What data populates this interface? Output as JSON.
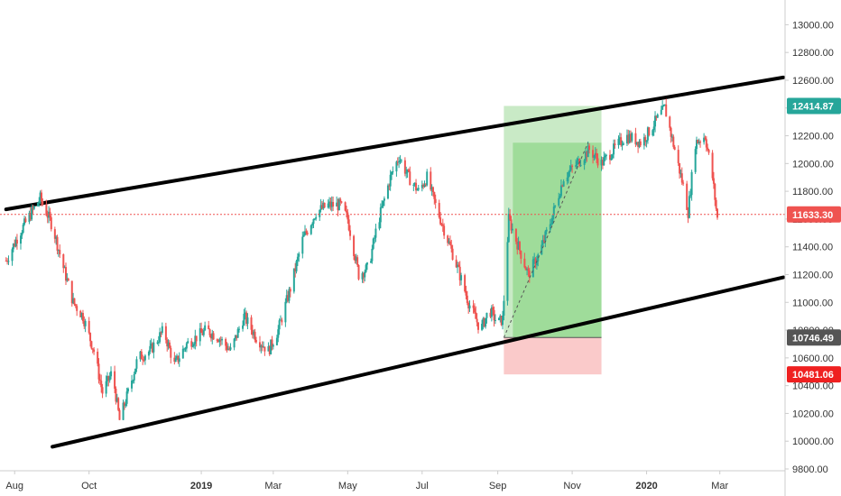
{
  "colors": {
    "up": "#26a69a",
    "down": "#ef5350",
    "channel": "#000000",
    "profit_zone": "#a5dca0",
    "profit_zone_inner": "#7ccf76",
    "loss_zone": "#f8b4b4",
    "current_price_line": "#ef5350",
    "axis_text": "#333333",
    "axis_line": "#cccccc"
  },
  "chart_data": {
    "type": "candlestick",
    "ylim": [
      9800,
      13100
    ],
    "y_ticks": [
      "13000.00",
      "12800.00",
      "12600.00",
      "12400.00",
      "12200.00",
      "12000.00",
      "11800.00",
      "11600.00",
      "11400.00",
      "11200.00",
      "11000.00",
      "10800.00",
      "10600.00",
      "10400.00",
      "10200.00",
      "10000.00",
      "9800.00"
    ],
    "x_ticks": [
      {
        "label": "Aug",
        "bold": false,
        "date": "2018-08-01"
      },
      {
        "label": "Oct",
        "bold": false,
        "date": "2018-10-01"
      },
      {
        "label": "2019",
        "bold": true,
        "date": "2019-01-01"
      },
      {
        "label": "Mar",
        "bold": false,
        "date": "2019-03-01"
      },
      {
        "label": "May",
        "bold": false,
        "date": "2019-05-01"
      },
      {
        "label": "Jul",
        "bold": false,
        "date": "2019-07-01"
      },
      {
        "label": "Sep",
        "bold": false,
        "date": "2019-09-01"
      },
      {
        "label": "Nov",
        "bold": false,
        "date": "2019-11-01"
      },
      {
        "label": "2020",
        "bold": true,
        "date": "2020-01-01"
      },
      {
        "label": "Mar",
        "bold": false,
        "date": "2020-03-01"
      }
    ],
    "price_path": [
      [
        "2018-07-25",
        11300
      ],
      [
        "2018-08-05",
        11500
      ],
      [
        "2018-08-15",
        11650
      ],
      [
        "2018-08-22",
        11750
      ],
      [
        "2018-09-01",
        11550
      ],
      [
        "2018-09-10",
        11250
      ],
      [
        "2018-09-18",
        11000
      ],
      [
        "2018-09-26",
        10900
      ],
      [
        "2018-10-05",
        10650
      ],
      [
        "2018-10-12",
        10350
      ],
      [
        "2018-10-20",
        10500
      ],
      [
        "2018-10-26",
        10150
      ],
      [
        "2018-11-02",
        10350
      ],
      [
        "2018-11-10",
        10600
      ],
      [
        "2018-11-20",
        10650
      ],
      [
        "2018-12-01",
        10800
      ],
      [
        "2018-12-10",
        10550
      ],
      [
        "2018-12-20",
        10700
      ],
      [
        "2019-01-05",
        10800
      ],
      [
        "2019-01-15",
        10750
      ],
      [
        "2019-01-25",
        10650
      ],
      [
        "2019-02-05",
        10900
      ],
      [
        "2019-02-15",
        10750
      ],
      [
        "2019-02-25",
        10650
      ],
      [
        "2019-03-05",
        10800
      ],
      [
        "2019-03-15",
        11100
      ],
      [
        "2019-03-25",
        11450
      ],
      [
        "2019-04-05",
        11650
      ],
      [
        "2019-04-15",
        11700
      ],
      [
        "2019-04-25",
        11700
      ],
      [
        "2019-05-01",
        11600
      ],
      [
        "2019-05-10",
        11200
      ],
      [
        "2019-05-18",
        11250
      ],
      [
        "2019-05-25",
        11550
      ],
      [
        "2019-06-05",
        11900
      ],
      [
        "2019-06-12",
        12050
      ],
      [
        "2019-06-20",
        11900
      ],
      [
        "2019-06-28",
        11800
      ],
      [
        "2019-07-05",
        11900
      ],
      [
        "2019-07-12",
        11700
      ],
      [
        "2019-07-20",
        11500
      ],
      [
        "2019-07-30",
        11250
      ],
      [
        "2019-08-08",
        11000
      ],
      [
        "2019-08-18",
        10800
      ],
      [
        "2019-08-25",
        10950
      ],
      [
        "2019-09-01",
        10850
      ],
      [
        "2019-09-05",
        10880
      ],
      [
        "2019-09-10",
        11600
      ],
      [
        "2019-09-18",
        11400
      ],
      [
        "2019-09-26",
        11200
      ],
      [
        "2019-10-05",
        11350
      ],
      [
        "2019-10-15",
        11600
      ],
      [
        "2019-10-25",
        11900
      ],
      [
        "2019-11-05",
        12000
      ],
      [
        "2019-11-15",
        12100
      ],
      [
        "2019-11-25",
        12000
      ],
      [
        "2019-12-05",
        12100
      ],
      [
        "2019-12-15",
        12200
      ],
      [
        "2019-12-28",
        12150
      ],
      [
        "2020-01-08",
        12300
      ],
      [
        "2020-01-16",
        12400
      ],
      [
        "2020-01-24",
        12100
      ],
      [
        "2020-02-01",
        11800
      ],
      [
        "2020-02-04",
        11650
      ],
      [
        "2020-02-10",
        12150
      ],
      [
        "2020-02-18",
        12200
      ],
      [
        "2020-02-24",
        11900
      ],
      [
        "2020-02-28",
        11600
      ]
    ],
    "channel_upper": {
      "start": {
        "date": "2018-07-25",
        "price": 11670
      },
      "end": {
        "date": "2020-04-22",
        "price": 12620
      }
    },
    "channel_lower": {
      "start": {
        "date": "2018-09-01",
        "price": 9960
      },
      "end": {
        "date": "2020-04-22",
        "price": 11180
      }
    },
    "trend_line": {
      "start": {
        "date": "2019-09-06",
        "price": 10746.49
      },
      "end": {
        "date": "2019-11-14",
        "price": 12150
      }
    },
    "position": {
      "start_date": "2019-09-06",
      "end_date": "2019-11-25",
      "entry": 10746.49,
      "target": 12414.87,
      "stop": 10481.06,
      "realized_top": 12150
    },
    "current_price": 11633.3,
    "price_badges": [
      {
        "label": "12414.87",
        "value": 12414.87,
        "color": "#26a69a"
      },
      {
        "label": "11633.30",
        "value": 11633.3,
        "color": "#ef5350"
      },
      {
        "label": "10746.49",
        "value": 10746.49,
        "color": "#555555"
      },
      {
        "label": "10481.06",
        "value": 10481.06,
        "color": "#ef2020"
      }
    ]
  }
}
